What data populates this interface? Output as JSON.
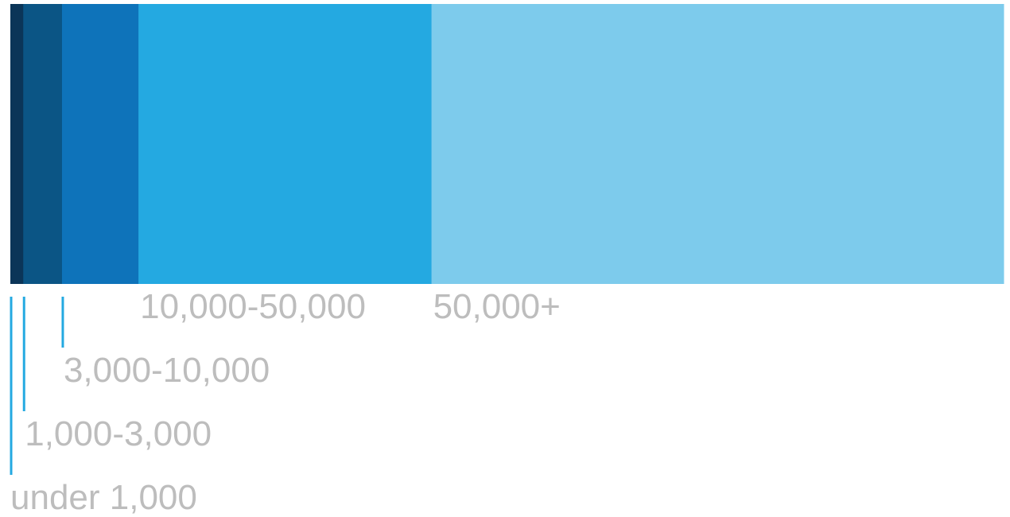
{
  "chart_data": {
    "type": "bar",
    "orientation": "horizontal-stacked",
    "title": "",
    "xlabel": "",
    "ylabel": "",
    "grid": false,
    "legend": "none",
    "categories": [
      "under 1,000",
      "1,000-3,000",
      "3,000-10,000",
      "10,000-50,000",
      "50,000+"
    ],
    "values": [
      1.3,
      3.9,
      7.7,
      29.5,
      57.6
    ],
    "colors": [
      "#0b3558",
      "#0b5585",
      "#0e73ba",
      "#24a9e1",
      "#7dcbec"
    ],
    "leader_color": "#24a9e1",
    "label_color": "#bdbdbd"
  }
}
